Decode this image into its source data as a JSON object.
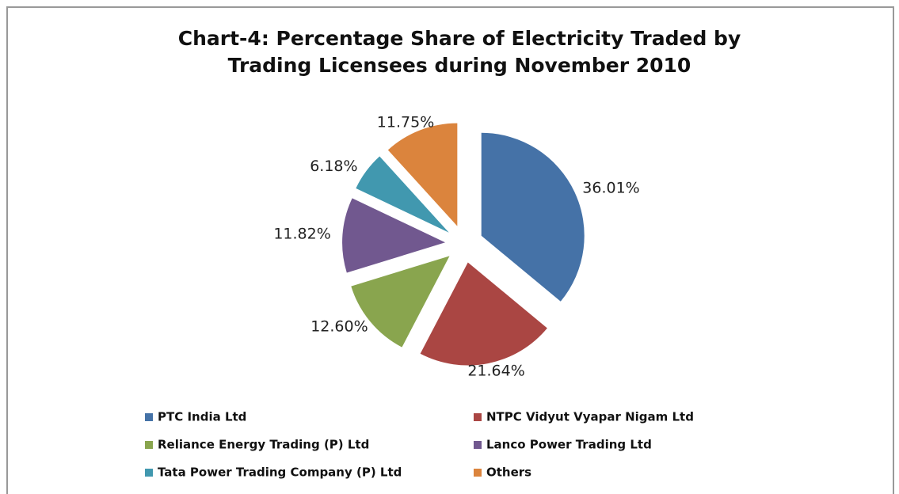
{
  "chart_data": {
    "type": "pie",
    "title": "Chart-4: Percentage Share of Electricity Traded by Trading Licensees during November 2010",
    "categories": [
      "PTC India Ltd",
      "NTPC Vidyut Vyapar Nigam Ltd",
      "Reliance Energy Trading (P) Ltd",
      "Lanco Power Trading Ltd",
      "Tata Power Trading Company (P) Ltd",
      "Others"
    ],
    "values": [
      36.01,
      21.64,
      12.6,
      11.82,
      6.18,
      11.75
    ],
    "value_labels": [
      "36.01%",
      "21.64%",
      "12.60%",
      "11.82%",
      "6.18%",
      "11.75%"
    ],
    "colors": [
      "#4572a7",
      "#aa4643",
      "#89a54e",
      "#71588f",
      "#4198af",
      "#db843d"
    ],
    "legend": "bottom"
  }
}
